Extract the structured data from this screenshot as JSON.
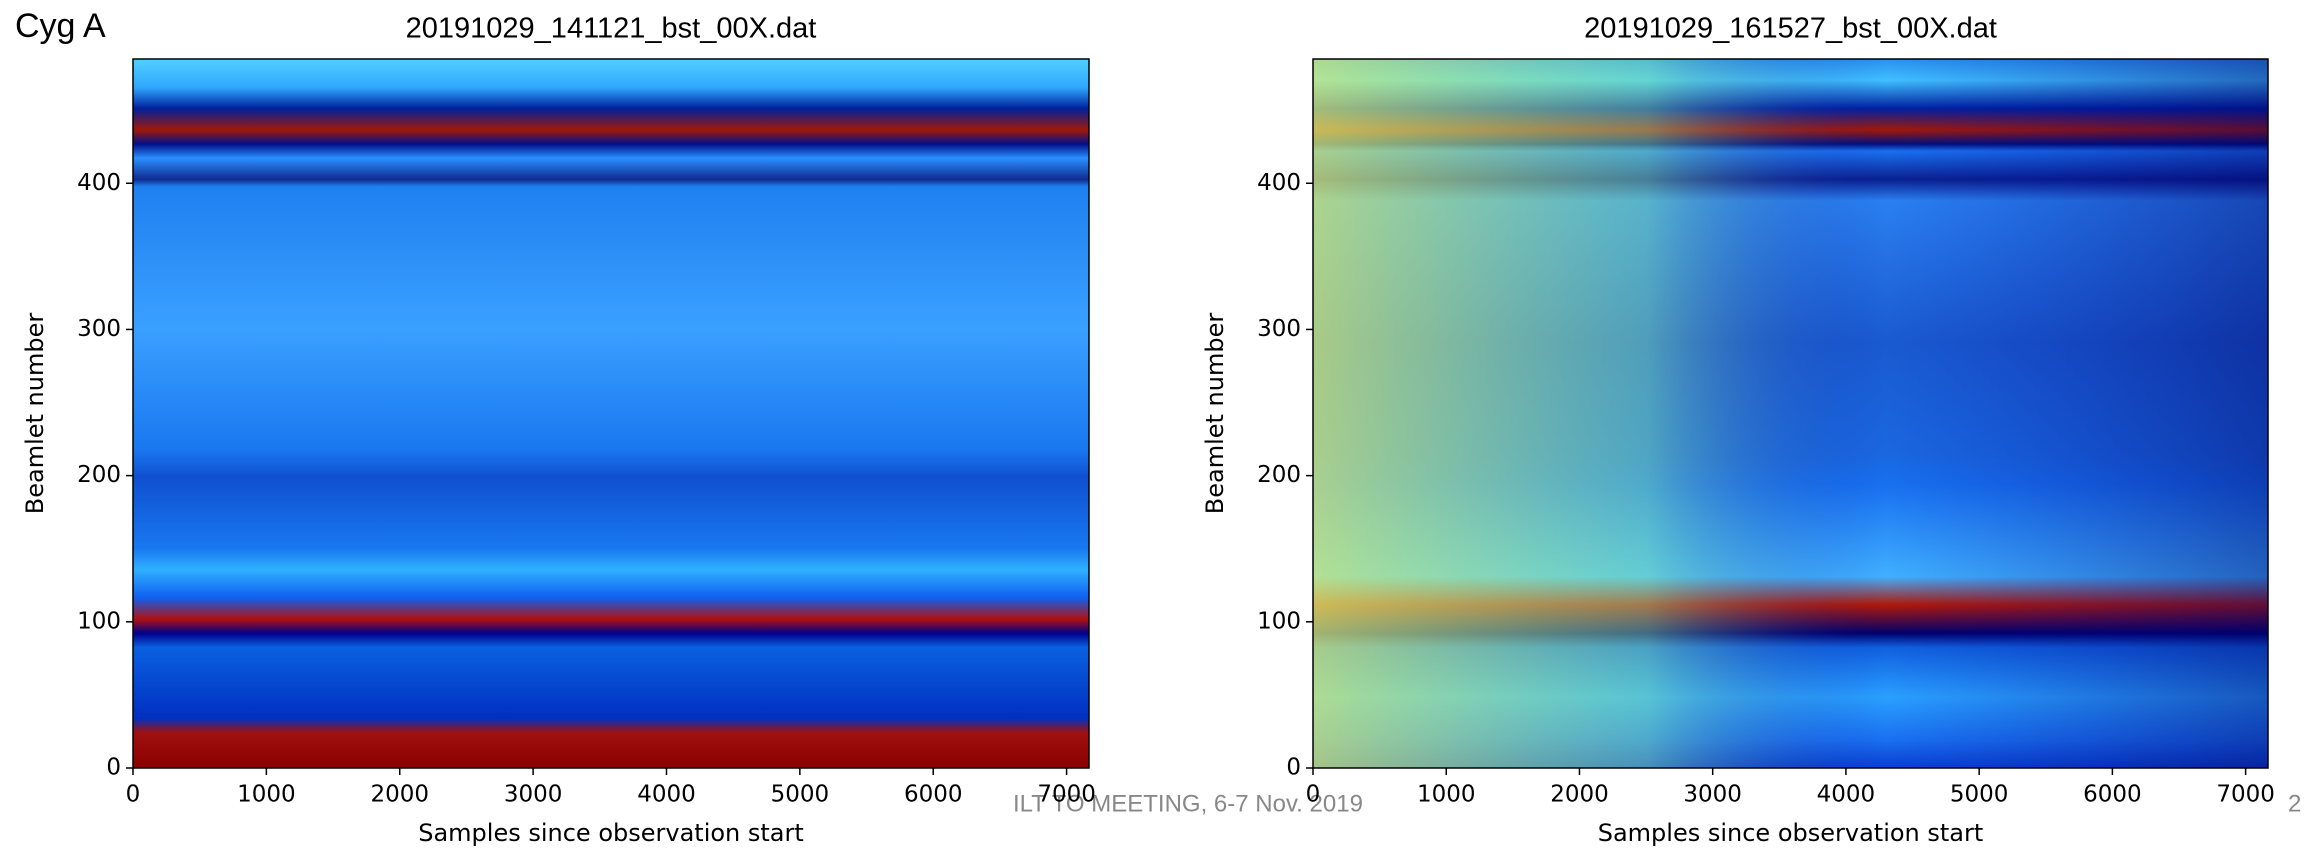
{
  "slide": {
    "label": "Cyg A",
    "footer": "ILT TO MEETING, 6-7 Nov. 2019",
    "page_number": "2"
  },
  "chart_data": [
    {
      "type": "heatmap",
      "title": "20191029_141121_bst_00X.dat",
      "xlabel": "Samples since observation start",
      "ylabel": "Beamlet number",
      "xlim": [
        0,
        7168
      ],
      "xticks": [
        0,
        1000,
        2000,
        3000,
        4000,
        5000,
        6000,
        7000
      ],
      "ylim": [
        0,
        485
      ],
      "yticks": [
        0,
        100,
        200,
        300,
        400
      ]
    },
    {
      "type": "heatmap",
      "title": "20191029_161527_bst_00X.dat",
      "xlabel": "Samples since observation start",
      "ylabel": "Beamlet number",
      "xlim": [
        0,
        7168
      ],
      "xticks": [
        0,
        1000,
        2000,
        3000,
        4000,
        5000,
        6000,
        7000
      ],
      "ylim": [
        0,
        485
      ],
      "yticks": [
        0,
        100,
        200,
        300,
        400
      ]
    }
  ]
}
